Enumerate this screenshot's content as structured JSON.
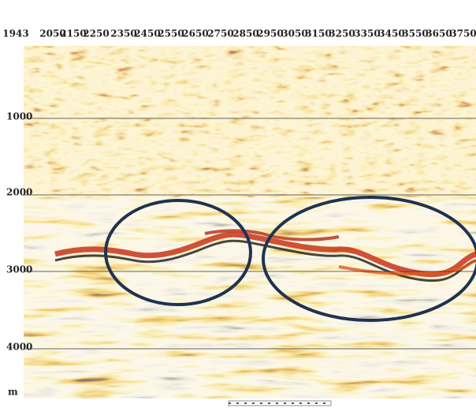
{
  "top_labels": [
    "1943",
    "2050",
    "2150",
    "2250",
    "2350",
    "2450",
    "2550",
    "2650",
    "2750",
    "2850",
    "2950",
    "3050",
    "3150",
    "3250",
    "3350",
    "3450",
    "3550",
    "3650",
    "3750"
  ],
  "depth_labels": [
    "1000",
    "2000",
    "3000",
    "4000"
  ],
  "unit": "m"
}
